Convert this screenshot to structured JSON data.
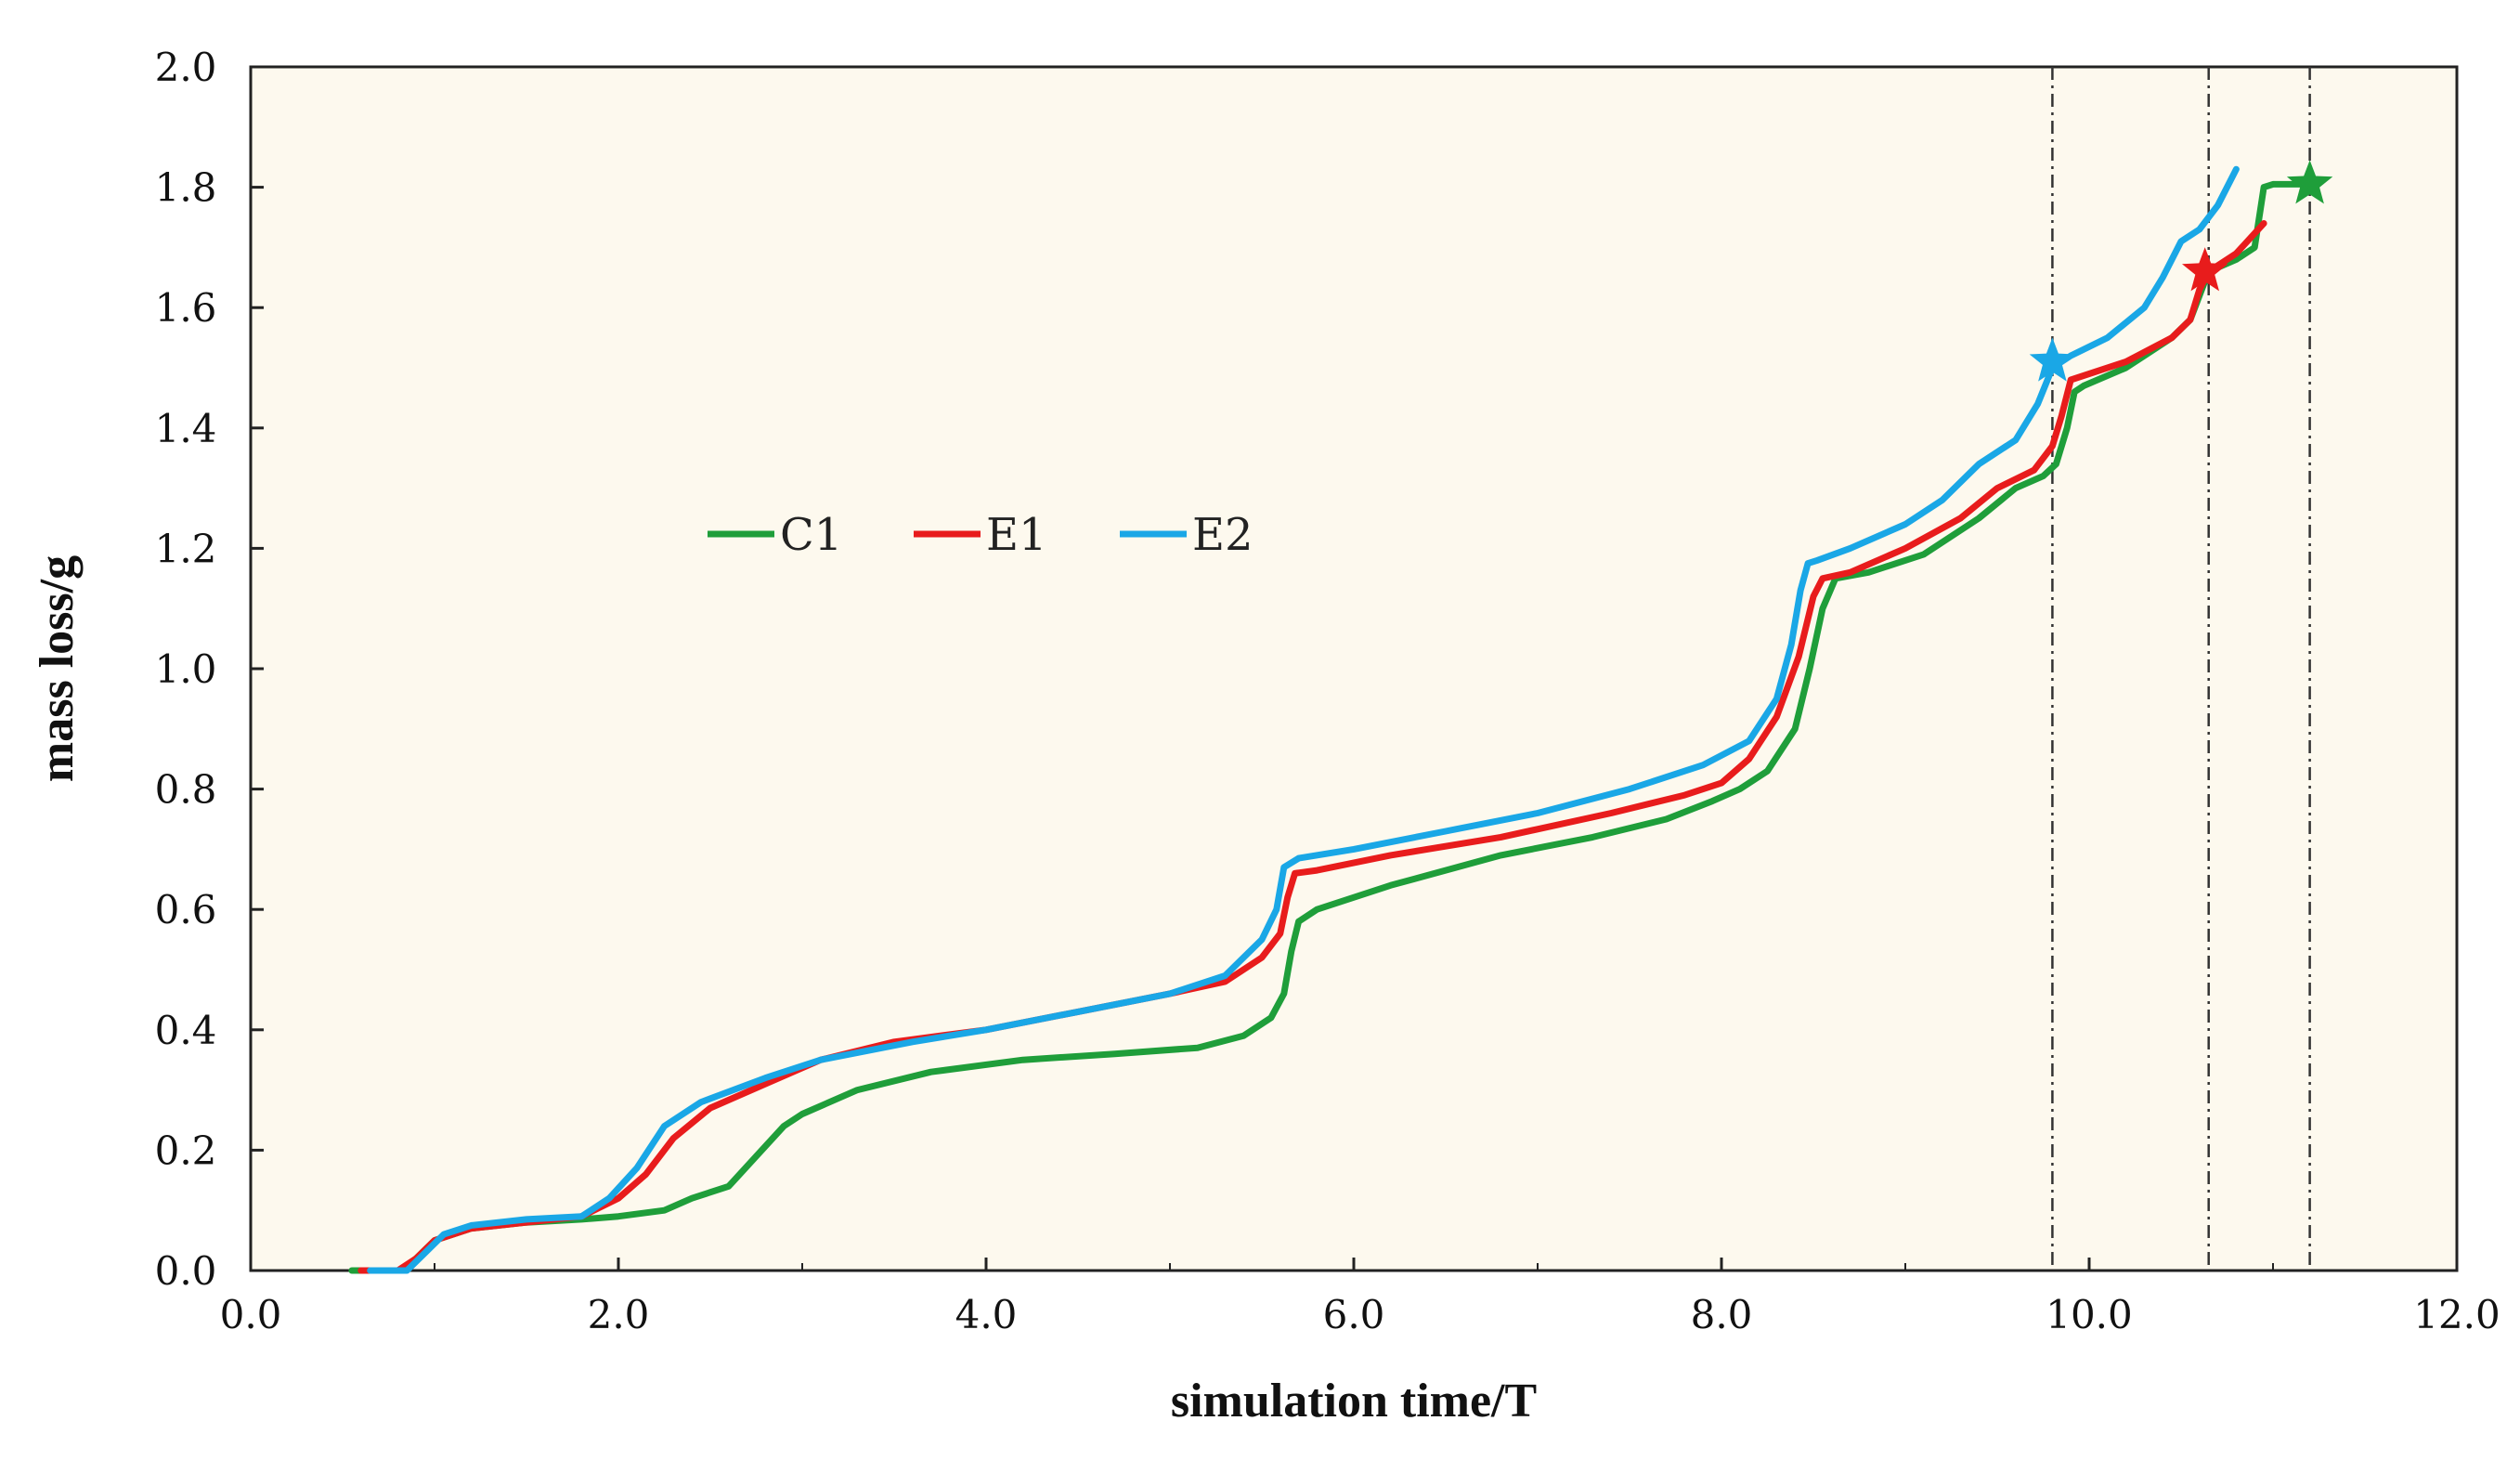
{
  "chart_data": {
    "type": "line",
    "title": "",
    "xlabel": "simulation time/T",
    "ylabel": "mass loss/g",
    "xlim": [
      0.0,
      12.0
    ],
    "ylim": [
      0.0,
      2.0
    ],
    "x_ticks": [
      0,
      2,
      4,
      6,
      8,
      10,
      12
    ],
    "x_tick_labels": [
      "0.0",
      "2.0",
      "4.0",
      "6.0",
      "8.0",
      "10.0",
      "12.0"
    ],
    "y_ticks": [
      0,
      0.2,
      0.4,
      0.6,
      0.8,
      1.0,
      1.2,
      1.4,
      1.6,
      1.8,
      2.0
    ],
    "y_tick_labels": [
      "0.0",
      "0.2",
      "0.4",
      "0.6",
      "0.8",
      "1.0",
      "1.2",
      "1.4",
      "1.6",
      "1.8",
      "2.0"
    ],
    "plot_background": "#fdf9ee",
    "legend_position": "center-left",
    "series": [
      {
        "name": "C1",
        "color": "#1f9e3a",
        "x": [
          0.55,
          0.82,
          0.9,
          1.0,
          1.2,
          1.5,
          1.8,
          2.0,
          2.25,
          2.4,
          2.6,
          2.75,
          2.9,
          3.0,
          3.3,
          3.7,
          4.2,
          4.7,
          5.15,
          5.4,
          5.55,
          5.62,
          5.66,
          5.7,
          5.8,
          6.2,
          6.8,
          7.3,
          7.7,
          7.95,
          8.1,
          8.25,
          8.4,
          8.48,
          8.55,
          8.62,
          8.8,
          9.1,
          9.4,
          9.6,
          9.75,
          9.82,
          9.88,
          9.92,
          9.97,
          10.2,
          10.45,
          10.55,
          10.6,
          10.65,
          10.8,
          10.9,
          10.95,
          11.0,
          11.2
        ],
        "values": [
          0.0,
          0.0,
          0.02,
          0.05,
          0.07,
          0.08,
          0.085,
          0.09,
          0.1,
          0.12,
          0.14,
          0.19,
          0.24,
          0.26,
          0.3,
          0.33,
          0.35,
          0.36,
          0.37,
          0.39,
          0.42,
          0.46,
          0.53,
          0.58,
          0.6,
          0.64,
          0.69,
          0.72,
          0.75,
          0.78,
          0.8,
          0.83,
          0.9,
          1.0,
          1.1,
          1.15,
          1.16,
          1.19,
          1.25,
          1.3,
          1.32,
          1.34,
          1.4,
          1.46,
          1.47,
          1.5,
          1.55,
          1.58,
          1.62,
          1.66,
          1.68,
          1.7,
          1.8,
          1.805,
          1.805
        ]
      },
      {
        "name": "E1",
        "color": "#e81c1c",
        "x": [
          0.6,
          0.8,
          0.9,
          1.0,
          1.2,
          1.5,
          1.8,
          2.0,
          2.15,
          2.3,
          2.5,
          2.8,
          3.1,
          3.5,
          4.0,
          4.5,
          5.0,
          5.3,
          5.5,
          5.6,
          5.64,
          5.68,
          5.8,
          6.2,
          6.8,
          7.4,
          7.8,
          8.0,
          8.15,
          8.3,
          8.42,
          8.5,
          8.55,
          8.7,
          9.0,
          9.3,
          9.5,
          9.7,
          9.8,
          9.85,
          9.9,
          10.0,
          10.2,
          10.45,
          10.55,
          10.6,
          10.65,
          10.8,
          10.95
        ],
        "values": [
          0.0,
          0.0,
          0.02,
          0.05,
          0.07,
          0.08,
          0.09,
          0.12,
          0.16,
          0.22,
          0.27,
          0.31,
          0.35,
          0.38,
          0.4,
          0.43,
          0.46,
          0.48,
          0.52,
          0.56,
          0.62,
          0.66,
          0.665,
          0.69,
          0.72,
          0.76,
          0.79,
          0.81,
          0.85,
          0.92,
          1.02,
          1.12,
          1.15,
          1.16,
          1.2,
          1.25,
          1.3,
          1.33,
          1.37,
          1.42,
          1.48,
          1.49,
          1.51,
          1.55,
          1.58,
          1.63,
          1.66,
          1.69,
          1.74
        ]
      },
      {
        "name": "E2",
        "color": "#1aa7e6",
        "x": [
          0.65,
          0.85,
          0.95,
          1.05,
          1.2,
          1.5,
          1.8,
          1.95,
          2.1,
          2.25,
          2.45,
          2.8,
          3.1,
          3.6,
          4.0,
          4.5,
          5.0,
          5.3,
          5.5,
          5.58,
          5.62,
          5.7,
          6.0,
          6.5,
          7.0,
          7.5,
          7.9,
          8.15,
          8.3,
          8.38,
          8.43,
          8.47,
          8.52,
          8.7,
          9.0,
          9.2,
          9.4,
          9.6,
          9.72,
          9.8,
          9.9,
          10.1,
          10.3,
          10.4,
          10.5,
          10.6,
          10.7,
          10.8
        ],
        "values": [
          0.0,
          0.0,
          0.03,
          0.06,
          0.075,
          0.085,
          0.09,
          0.12,
          0.17,
          0.24,
          0.28,
          0.32,
          0.35,
          0.38,
          0.4,
          0.43,
          0.46,
          0.49,
          0.55,
          0.6,
          0.67,
          0.685,
          0.7,
          0.73,
          0.76,
          0.8,
          0.84,
          0.88,
          0.95,
          1.04,
          1.13,
          1.175,
          1.18,
          1.2,
          1.24,
          1.28,
          1.34,
          1.38,
          1.44,
          1.5,
          1.52,
          1.55,
          1.6,
          1.65,
          1.71,
          1.73,
          1.77,
          1.83
        ]
      }
    ],
    "markers": [
      {
        "series": "E2",
        "symbol": "star",
        "x": 9.8,
        "y": 1.51,
        "color": "#1aa7e6"
      },
      {
        "series": "E1",
        "symbol": "star",
        "x": 10.63,
        "y": 1.66,
        "color": "#e81c1c"
      },
      {
        "series": "C1",
        "symbol": "star",
        "x": 11.2,
        "y": 1.805,
        "color": "#1f9e3a"
      }
    ],
    "vlines": [
      {
        "x": 9.8,
        "style": "dash-dot"
      },
      {
        "x": 10.65,
        "style": "dash-dot"
      },
      {
        "x": 11.2,
        "style": "dash-dot"
      }
    ]
  }
}
